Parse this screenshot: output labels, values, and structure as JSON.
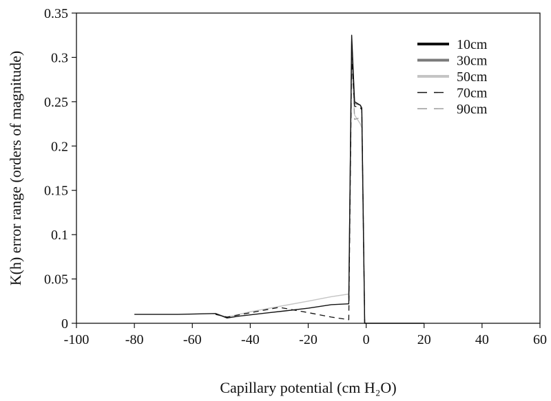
{
  "chart_data": {
    "type": "line",
    "title": "",
    "xlabel": "Capillary potential (cm H₂O)",
    "ylabel": "K(h) error range (orders of magnitude)",
    "xlim": [
      -100,
      60
    ],
    "ylim": [
      0,
      0.35
    ],
    "xticks": [
      -100,
      -80,
      -60,
      -40,
      -20,
      0,
      20,
      40,
      60
    ],
    "yticks": [
      0,
      0.05,
      0.1,
      0.15,
      0.2,
      0.25,
      0.3,
      0.35
    ],
    "xtick_labels": [
      "-100",
      "-80",
      "-60",
      "-40",
      "-20",
      "0",
      "20",
      "40",
      "60"
    ],
    "ytick_labels": [
      "0",
      "0.05",
      "0.1",
      "0.15",
      "0.2",
      "0.25",
      "0.3",
      "0.35"
    ],
    "grid": false,
    "legend": "top-right",
    "series": [
      {
        "name": "10cm",
        "color": "#111111",
        "style": "solid-thick",
        "x": [
          -80,
          -65,
          -52,
          -48,
          -44,
          -36,
          -28,
          -20,
          -12,
          -6,
          -5,
          -4,
          -2,
          -1.5,
          -0.5,
          0.5,
          20
        ],
        "y": [
          0.01,
          0.01,
          0.011,
          0.006,
          0.008,
          0.011,
          0.014,
          0.017,
          0.021,
          0.022,
          0.325,
          0.25,
          0.246,
          0.243,
          0.0,
          0.0,
          0.0
        ]
      },
      {
        "name": "30cm",
        "color": "#7a7a7a",
        "style": "solid-thick",
        "x": [
          -6,
          -5,
          -4,
          -2,
          -1.5,
          -0.5
        ],
        "y": [
          0.028,
          0.318,
          0.248,
          0.246,
          0.241,
          0.0
        ]
      },
      {
        "name": "50cm",
        "color": "#c4c4c4",
        "style": "solid-thick",
        "x": [
          -52,
          -48,
          -40,
          -30,
          -20,
          -12,
          -6,
          -5,
          -4,
          -2,
          -1.5,
          -0.5
        ],
        "y": [
          0.011,
          0.007,
          0.013,
          0.019,
          0.025,
          0.03,
          0.033,
          0.305,
          0.235,
          0.225,
          0.22,
          0.0
        ]
      },
      {
        "name": "70cm",
        "color": "#111111",
        "style": "dashed",
        "x": [
          -52,
          -48,
          -30,
          -20,
          -12,
          -6,
          -5,
          -4,
          -2,
          -1.5,
          -0.5,
          0.5
        ],
        "y": [
          0.01,
          0.007,
          0.018,
          0.012,
          0.007,
          0.004,
          0.3,
          0.245,
          0.243,
          0.241,
          0.0,
          0.0
        ]
      },
      {
        "name": "90cm",
        "color": "#9a9a9a",
        "style": "dashed",
        "x": [
          -6,
          -5,
          -4,
          -2,
          -1.5,
          -0.5
        ],
        "y": [
          0.03,
          0.31,
          0.23,
          0.232,
          0.23,
          0.0
        ]
      }
    ]
  }
}
